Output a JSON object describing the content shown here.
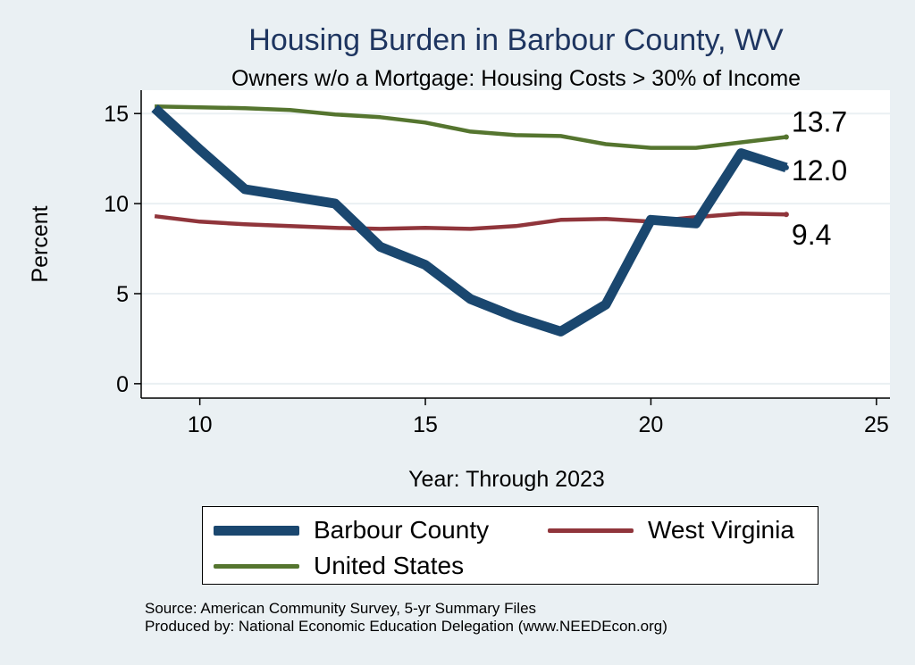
{
  "chart_data": {
    "type": "line",
    "title": "Housing Burden in Barbour County, WV",
    "subtitle": "Owners w/o a Mortgage: Housing Costs > 30% of Income",
    "xlabel": "Year: Through 2023",
    "ylabel": "Percent",
    "xlim": [
      8.7,
      25.3
    ],
    "ylim": [
      -0.8,
      16.3
    ],
    "x_ticks": [
      10,
      15,
      20,
      25
    ],
    "y_ticks": [
      0,
      5,
      10,
      15
    ],
    "grid": true,
    "legend_position": "bottom",
    "x": [
      9,
      10,
      11,
      12,
      13,
      14,
      15,
      16,
      17,
      18,
      19,
      20,
      21,
      22,
      23
    ],
    "series": [
      {
        "name": "Barbour County",
        "color": "#1a476f",
        "values": [
          15.3,
          13.0,
          10.8,
          10.4,
          10.0,
          7.6,
          6.6,
          4.7,
          3.7,
          2.9,
          4.4,
          9.1,
          8.9,
          12.8,
          12.0
        ],
        "end_label": "12.0"
      },
      {
        "name": "West Virginia",
        "color": "#90353b",
        "values": [
          9.3,
          9.0,
          8.85,
          8.75,
          8.65,
          8.6,
          8.65,
          8.6,
          8.75,
          9.1,
          9.15,
          9.0,
          9.25,
          9.45,
          9.4
        ],
        "end_label": "9.4"
      },
      {
        "name": "United States",
        "color": "#55752f",
        "values": [
          15.4,
          15.35,
          15.3,
          15.2,
          14.95,
          14.8,
          14.5,
          14.0,
          13.8,
          13.75,
          13.3,
          13.1,
          13.1,
          13.4,
          13.7
        ],
        "end_label": "13.7"
      }
    ]
  },
  "footer": {
    "source": "Source: American Community Survey, 5-yr Summary Files",
    "produced": "Produced by: National Economic Education Delegation (www.NEEDEcon.org)"
  }
}
